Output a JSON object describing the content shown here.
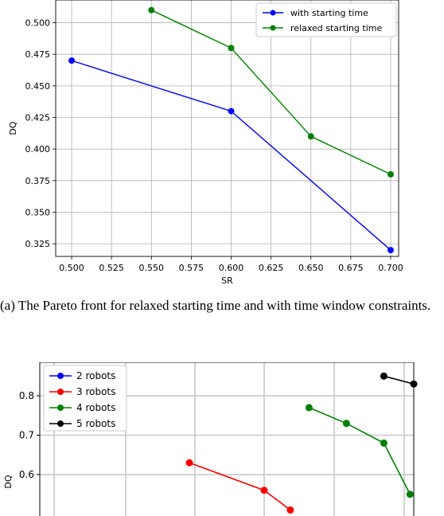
{
  "caption": "(a) The Pareto front for relaxed starting time and with time window constraints.",
  "chart_data": [
    {
      "type": "line",
      "xlabel": "SR",
      "ylabel": "DQ",
      "xlim": [
        0.49,
        0.705
      ],
      "ylim": [
        0.315,
        0.518
      ],
      "xticks": [
        "0.500",
        "0.525",
        "0.550",
        "0.575",
        "0.600",
        "0.625",
        "0.650",
        "0.675",
        "0.700"
      ],
      "yticks": [
        "0.325",
        "0.350",
        "0.375",
        "0.400",
        "0.425",
        "0.450",
        "0.475",
        "0.500"
      ],
      "grid": true,
      "legend_position": "top-right",
      "series": [
        {
          "name": "with starting time",
          "color": "#0000ff",
          "x": [
            0.5,
            0.6,
            0.7
          ],
          "y": [
            0.47,
            0.43,
            0.32
          ]
        },
        {
          "name": "relaxed starting time",
          "color": "#008000",
          "x": [
            0.55,
            0.6,
            0.65,
            0.7
          ],
          "y": [
            0.51,
            0.48,
            0.41,
            0.38
          ]
        }
      ]
    },
    {
      "type": "line",
      "xlabel": "",
      "ylabel": "DQ",
      "yticks": [
        "0.6",
        "0.7",
        "0.8"
      ],
      "ylim": [
        0.42,
        0.885
      ],
      "xlim": [
        0.0,
        1.0
      ],
      "grid": true,
      "legend_position": "top-left",
      "series": [
        {
          "name": "2 robots",
          "color": "#0000ff",
          "x": [],
          "y": []
        },
        {
          "name": "3 robots",
          "color": "#ff0000",
          "x": [
            0.4,
            0.6,
            0.67
          ],
          "y": [
            0.63,
            0.56,
            0.51
          ]
        },
        {
          "name": "4 robots",
          "color": "#008000",
          "x": [
            0.72,
            0.82,
            0.92,
            0.99
          ],
          "y": [
            0.77,
            0.73,
            0.68,
            0.55
          ]
        },
        {
          "name": "5 robots",
          "color": "#000000",
          "x": [
            0.92,
            1.0
          ],
          "y": [
            0.85,
            0.83
          ]
        }
      ]
    }
  ]
}
